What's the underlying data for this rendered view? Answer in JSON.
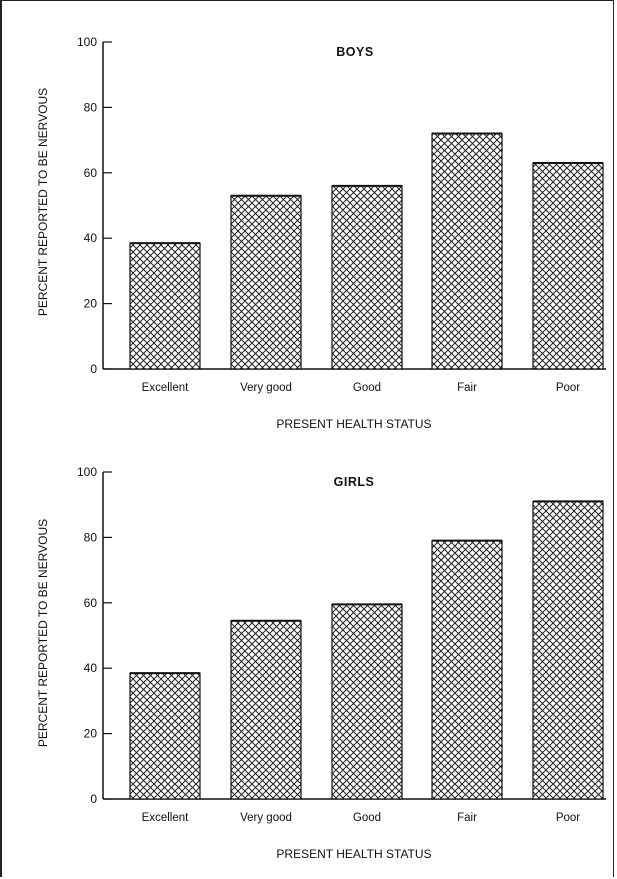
{
  "chart_data": [
    {
      "type": "bar",
      "title": "BOYS",
      "xlabel": "PRESENT HEALTH STATUS",
      "ylabel": "PERCENT REPORTED TO BE NERVOUS",
      "categories": [
        "Excellent",
        "Very good",
        "Good",
        "Fair",
        "Poor"
      ],
      "values": [
        38.5,
        53,
        56,
        72,
        63
      ],
      "ylim": [
        0,
        100
      ],
      "yticks": [
        "0",
        "20",
        "40",
        "60",
        "80",
        "100"
      ],
      "grid": false,
      "legend": "none",
      "bar_pattern": "crosshatch"
    },
    {
      "type": "bar",
      "title": "GIRLS",
      "xlabel": "PRESENT HEALTH STATUS",
      "ylabel": "PERCENT REPORTED TO BE NERVOUS",
      "categories": [
        "Excellent",
        "Very good",
        "Good",
        "Fair",
        "Poor"
      ],
      "values": [
        38.5,
        54.5,
        59.5,
        79,
        91
      ],
      "ylim": [
        0,
        100
      ],
      "yticks": [
        "0",
        "20",
        "40",
        "60",
        "80",
        "100"
      ],
      "grid": false,
      "legend": "none",
      "bar_pattern": "crosshatch"
    }
  ]
}
